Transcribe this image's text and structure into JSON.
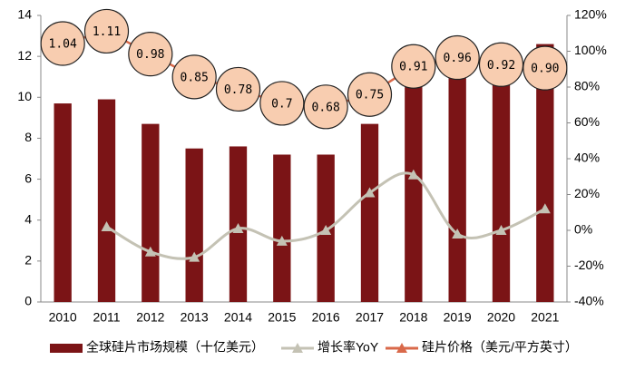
{
  "chart_data": {
    "type": "bar-line",
    "categories": [
      "2010",
      "2011",
      "2012",
      "2013",
      "2014",
      "2015",
      "2016",
      "2017",
      "2018",
      "2019",
      "2020",
      "2021"
    ],
    "series": [
      {
        "name": "全球硅片市场规模（十亿美元）",
        "color": "#7b1416",
        "kind": "bar",
        "axis": "y",
        "values": [
          9.7,
          9.9,
          8.7,
          7.5,
          7.6,
          7.2,
          7.2,
          8.7,
          11.4,
          11.2,
          11.2,
          12.6
        ]
      },
      {
        "name": "增长率YoY",
        "color": "#c4c2b4",
        "kind": "line",
        "axis": "y2",
        "values": [
          null,
          2,
          -12,
          -15,
          1,
          -6,
          0,
          21,
          31,
          -2,
          0,
          12
        ]
      },
      {
        "name": "硅片价格（美元/平方英寸）",
        "color": "#d9694a",
        "kind": "bubble-line",
        "axis": "y3",
        "values": [
          1.04,
          1.11,
          0.98,
          0.85,
          0.78,
          0.7,
          0.68,
          0.75,
          0.91,
          0.96,
          0.92,
          0.9
        ],
        "value_labels": [
          "1.04",
          "1.11",
          "0.98",
          "0.85",
          "0.78",
          "0.7",
          "0.68",
          "0.75",
          "0.91",
          "0.96",
          "0.92",
          "0.90"
        ]
      }
    ],
    "ylim": [
      0,
      14
    ],
    "yticks": [
      0,
      2,
      4,
      6,
      8,
      10,
      12,
      14
    ],
    "y2lim": [
      -40,
      120
    ],
    "y2ticks": [
      {
        "value": -40,
        "label": "-40%"
      },
      {
        "value": -20,
        "label": "-20%"
      },
      {
        "value": 0,
        "label": "0%"
      },
      {
        "value": 20,
        "label": "20%"
      },
      {
        "value": 40,
        "label": "40%"
      },
      {
        "value": 60,
        "label": "60%"
      },
      {
        "value": 80,
        "label": "80%"
      },
      {
        "value": 100,
        "label": "100%"
      },
      {
        "value": 120,
        "label": "120%"
      }
    ],
    "y3lim": [
      -0.43,
      1.2
    ],
    "legend": "bottom",
    "grid": false
  }
}
